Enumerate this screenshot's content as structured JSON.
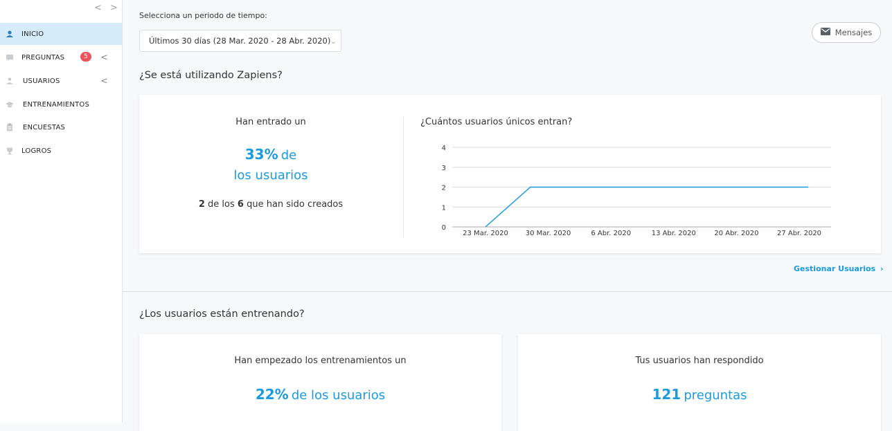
{
  "sidebar": {
    "items": [
      {
        "label": "INICIO",
        "icon": "user-circle-icon",
        "active": true
      },
      {
        "label": "PREGUNTAS",
        "icon": "chat-icon",
        "badge": "5",
        "chevron": "<"
      },
      {
        "label": "USUARIOS",
        "icon": "person-icon",
        "chevron": "<"
      },
      {
        "label": "ENTRENAMIENTOS",
        "icon": "graduation-cap-icon"
      },
      {
        "label": "ENCUESTAS",
        "icon": "clipboard-icon"
      },
      {
        "label": "LOGROS",
        "icon": "trophy-icon"
      }
    ],
    "collapse_label": "< >"
  },
  "header": {
    "period_label": "Selecciona un periodo de tiempo:",
    "period_value": "Últimos 30 días (28 Mar. 2020 - 28 Abr. 2020)",
    "messages_label": "Mensajes"
  },
  "section1": {
    "title": "¿Se está utilizando Zapiens?",
    "entered_label": "Han entrado un",
    "pct": "33%",
    "pct_suffix": "de",
    "pct_line2": "los usuarios",
    "created_num": "2",
    "created_mid": "de los",
    "created_total": "6",
    "created_suffix": "que han sido creados",
    "chart_title": "¿Cuántos usuarios únicos entran?",
    "manage_link": "Gestionar Usuarios"
  },
  "section2": {
    "title": "¿Los usuarios están entrenando?",
    "card1_label": "Han empezado los entrenamientos un",
    "card1_pct": "22%",
    "card1_rest": "de los usuarios",
    "card2_label": "Tus usuarios han respondido",
    "card2_num": "121",
    "card2_rest": "preguntas"
  },
  "colors": {
    "accent": "#1a9be0",
    "badge": "#e9545f",
    "active_bg": "#d6ecfa"
  },
  "chart_data": {
    "type": "line",
    "x": [
      "23 Mar. 2020",
      "30 Mar. 2020",
      "6 Abr. 2020",
      "13 Abr. 2020",
      "20 Abr. 2020",
      "27 Abr. 2020"
    ],
    "yticks": [
      "0",
      "1",
      "2",
      "3",
      "4"
    ],
    "ylim": [
      0,
      4
    ],
    "series": [
      {
        "points": [
          {
            "x": "23 Mar. 2020",
            "y": 0
          },
          {
            "x": "28 Mar. 2020",
            "y": 2
          },
          {
            "x": "28 Abr. 2020",
            "y": 2
          }
        ]
      }
    ],
    "grid": true,
    "color": "#1a9be0"
  }
}
